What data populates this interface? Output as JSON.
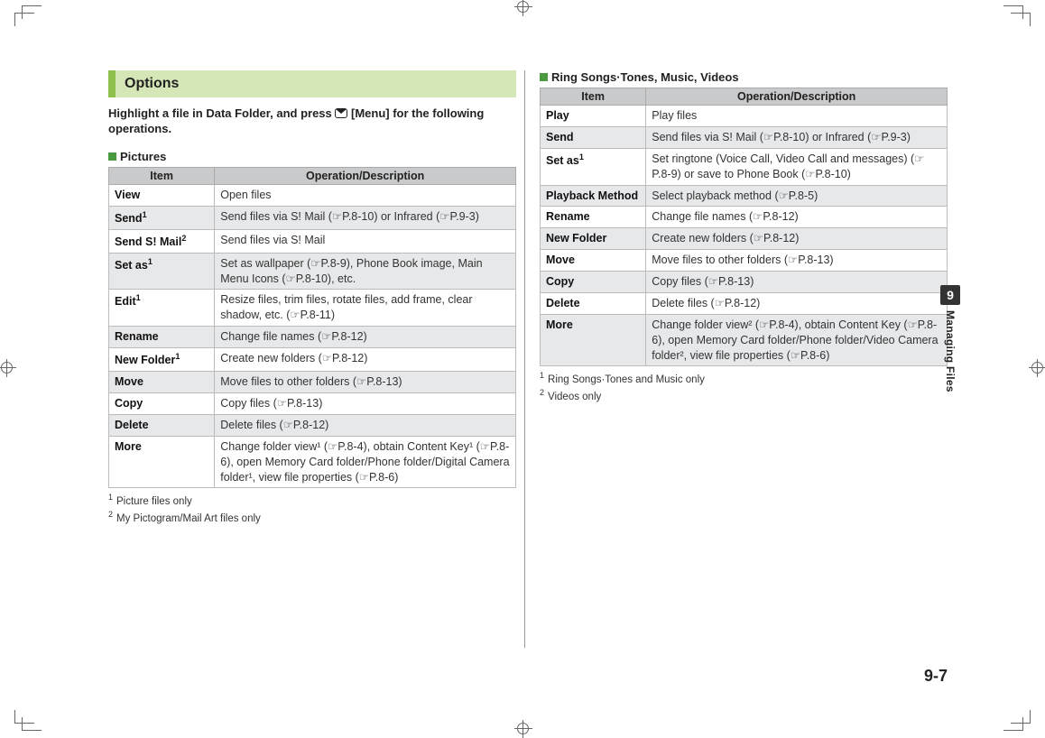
{
  "section_title": "Options",
  "instruction_pre": "Highlight a file in Data Folder, and press ",
  "instruction_post": "[Menu] for the following operations.",
  "left": {
    "heading": "Pictures",
    "th_item": "Item",
    "th_desc": "Operation/Description",
    "rows": [
      {
        "item": "View",
        "sup": "",
        "desc": "Open files"
      },
      {
        "item": "Send",
        "sup": "1",
        "desc": "Send files via S! Mail (☞P.8-10) or Infrared (☞P.9-3)"
      },
      {
        "item": "Send S! Mail",
        "sup": "2",
        "desc": "Send files via S! Mail"
      },
      {
        "item": "Set as",
        "sup": "1",
        "desc": "Set as wallpaper (☞P.8-9), Phone Book image, Main Menu Icons (☞P.8-10), etc."
      },
      {
        "item": "Edit",
        "sup": "1",
        "desc": "Resize files, trim files, rotate files, add frame, clear shadow, etc. (☞P.8-11)"
      },
      {
        "item": "Rename",
        "sup": "",
        "desc": "Change file names (☞P.8-12)"
      },
      {
        "item": "New Folder",
        "sup": "1",
        "desc": "Create new folders (☞P.8-12)"
      },
      {
        "item": "Move",
        "sup": "",
        "desc": "Move files to other folders (☞P.8-13)"
      },
      {
        "item": "Copy",
        "sup": "",
        "desc": "Copy files (☞P.8-13)"
      },
      {
        "item": "Delete",
        "sup": "",
        "desc": "Delete files (☞P.8-12)"
      },
      {
        "item": "More",
        "sup": "",
        "desc": "Change folder view¹ (☞P.8-4), obtain Content Key¹ (☞P.8-6), open Memory Card folder/Phone folder/Digital Camera folder¹, view file properties (☞P.8-6)"
      }
    ],
    "footnote1": "Picture files only",
    "footnote2": "My Pictogram/Mail Art files only"
  },
  "right": {
    "heading": "Ring Songs·Tones, Music, Videos",
    "th_item": "Item",
    "th_desc": "Operation/Description",
    "rows": [
      {
        "item": "Play",
        "sup": "",
        "desc": "Play files"
      },
      {
        "item": "Send",
        "sup": "",
        "desc": "Send files via S! Mail (☞P.8-10) or Infrared (☞P.9-3)"
      },
      {
        "item": "Set as",
        "sup": "1",
        "desc": "Set ringtone (Voice Call, Video Call and messages) (☞P.8-9) or save to Phone Book (☞P.8-10)"
      },
      {
        "item": "Playback Method",
        "sup": "",
        "desc": "Select playback method (☞P.8-5)"
      },
      {
        "item": "Rename",
        "sup": "",
        "desc": "Change file names (☞P.8-12)"
      },
      {
        "item": "New Folder",
        "sup": "",
        "desc": "Create new folders (☞P.8-12)"
      },
      {
        "item": "Move",
        "sup": "",
        "desc": "Move files to other folders (☞P.8-13)"
      },
      {
        "item": "Copy",
        "sup": "",
        "desc": "Copy files (☞P.8-13)"
      },
      {
        "item": "Delete",
        "sup": "",
        "desc": "Delete files (☞P.8-12)"
      },
      {
        "item": "More",
        "sup": "",
        "desc": "Change folder view² (☞P.8-4), obtain Content Key (☞P.8-6), open Memory Card folder/Phone folder/Video Camera folder², view file properties (☞P.8-6)"
      }
    ],
    "footnote1": "Ring Songs·Tones and Music only",
    "footnote2": "Videos only"
  },
  "tab_number": "9",
  "tab_text": "Managing Files",
  "page_number": "9-7"
}
